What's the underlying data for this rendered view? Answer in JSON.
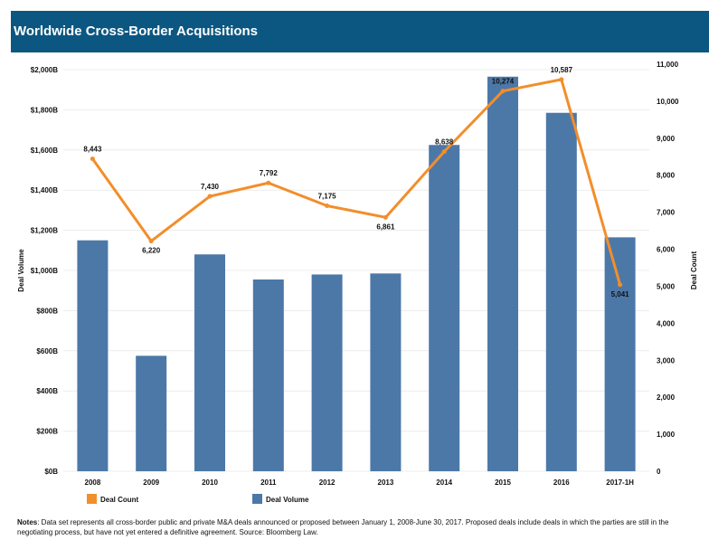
{
  "header": {
    "title": "Worldwide Cross-Border Acquisitions"
  },
  "notes": {
    "label": "Notes",
    "text": ": Data set represents all cross-border public and private M&A deals announced or proposed between January 1, 2008-June 30, 2017. Proposed deals include deals in which the parties are still in the negotiating process, but have not yet entered a definitive agreement. Source: Bloomberg Law."
  },
  "chart_data": {
    "type": "bar+line",
    "title": "Worldwide Cross-Border Acquisitions",
    "categories": [
      "2008",
      "2009",
      "2010",
      "2011",
      "2012",
      "2013",
      "2014",
      "2015",
      "2016",
      "2017-1H"
    ],
    "series": [
      {
        "name": "Deal Volume",
        "type": "bar",
        "axis": "left",
        "color": "#4c78a8",
        "values": [
          1150,
          575,
          1080,
          955,
          980,
          985,
          1625,
          1965,
          1785,
          1165
        ]
      },
      {
        "name": "Deal Count",
        "type": "line",
        "axis": "right",
        "color": "#f28e2b",
        "values": [
          8443,
          6220,
          7430,
          7792,
          7175,
          6861,
          8638,
          10274,
          10587,
          5041
        ],
        "labels": [
          "8,443",
          "6,220",
          "7,430",
          "7,792",
          "7,175",
          "6,861",
          "8,638",
          "10,274",
          "10,587",
          "5,041"
        ]
      }
    ],
    "ylabel": "Deal Volume",
    "ylim": [
      0,
      2000
    ],
    "yticks": [
      "$0B",
      "$200B",
      "$400B",
      "$600B",
      "$800B",
      "$1,000B",
      "$1,200B",
      "$1,400B",
      "$1,600B",
      "$1,800B",
      "$2,000B"
    ],
    "y2label": "Deal Count",
    "y2lim": [
      0,
      11000
    ],
    "y2ticks": [
      "0",
      "1,000",
      "2,000",
      "3,000",
      "4,000",
      "5,000",
      "6,000",
      "7,000",
      "8,000",
      "9,000",
      "10,000",
      "11,000"
    ],
    "grid": true,
    "legend": {
      "position": "bottom-left",
      "entries": [
        "Deal Count",
        "Deal Volume"
      ]
    }
  }
}
